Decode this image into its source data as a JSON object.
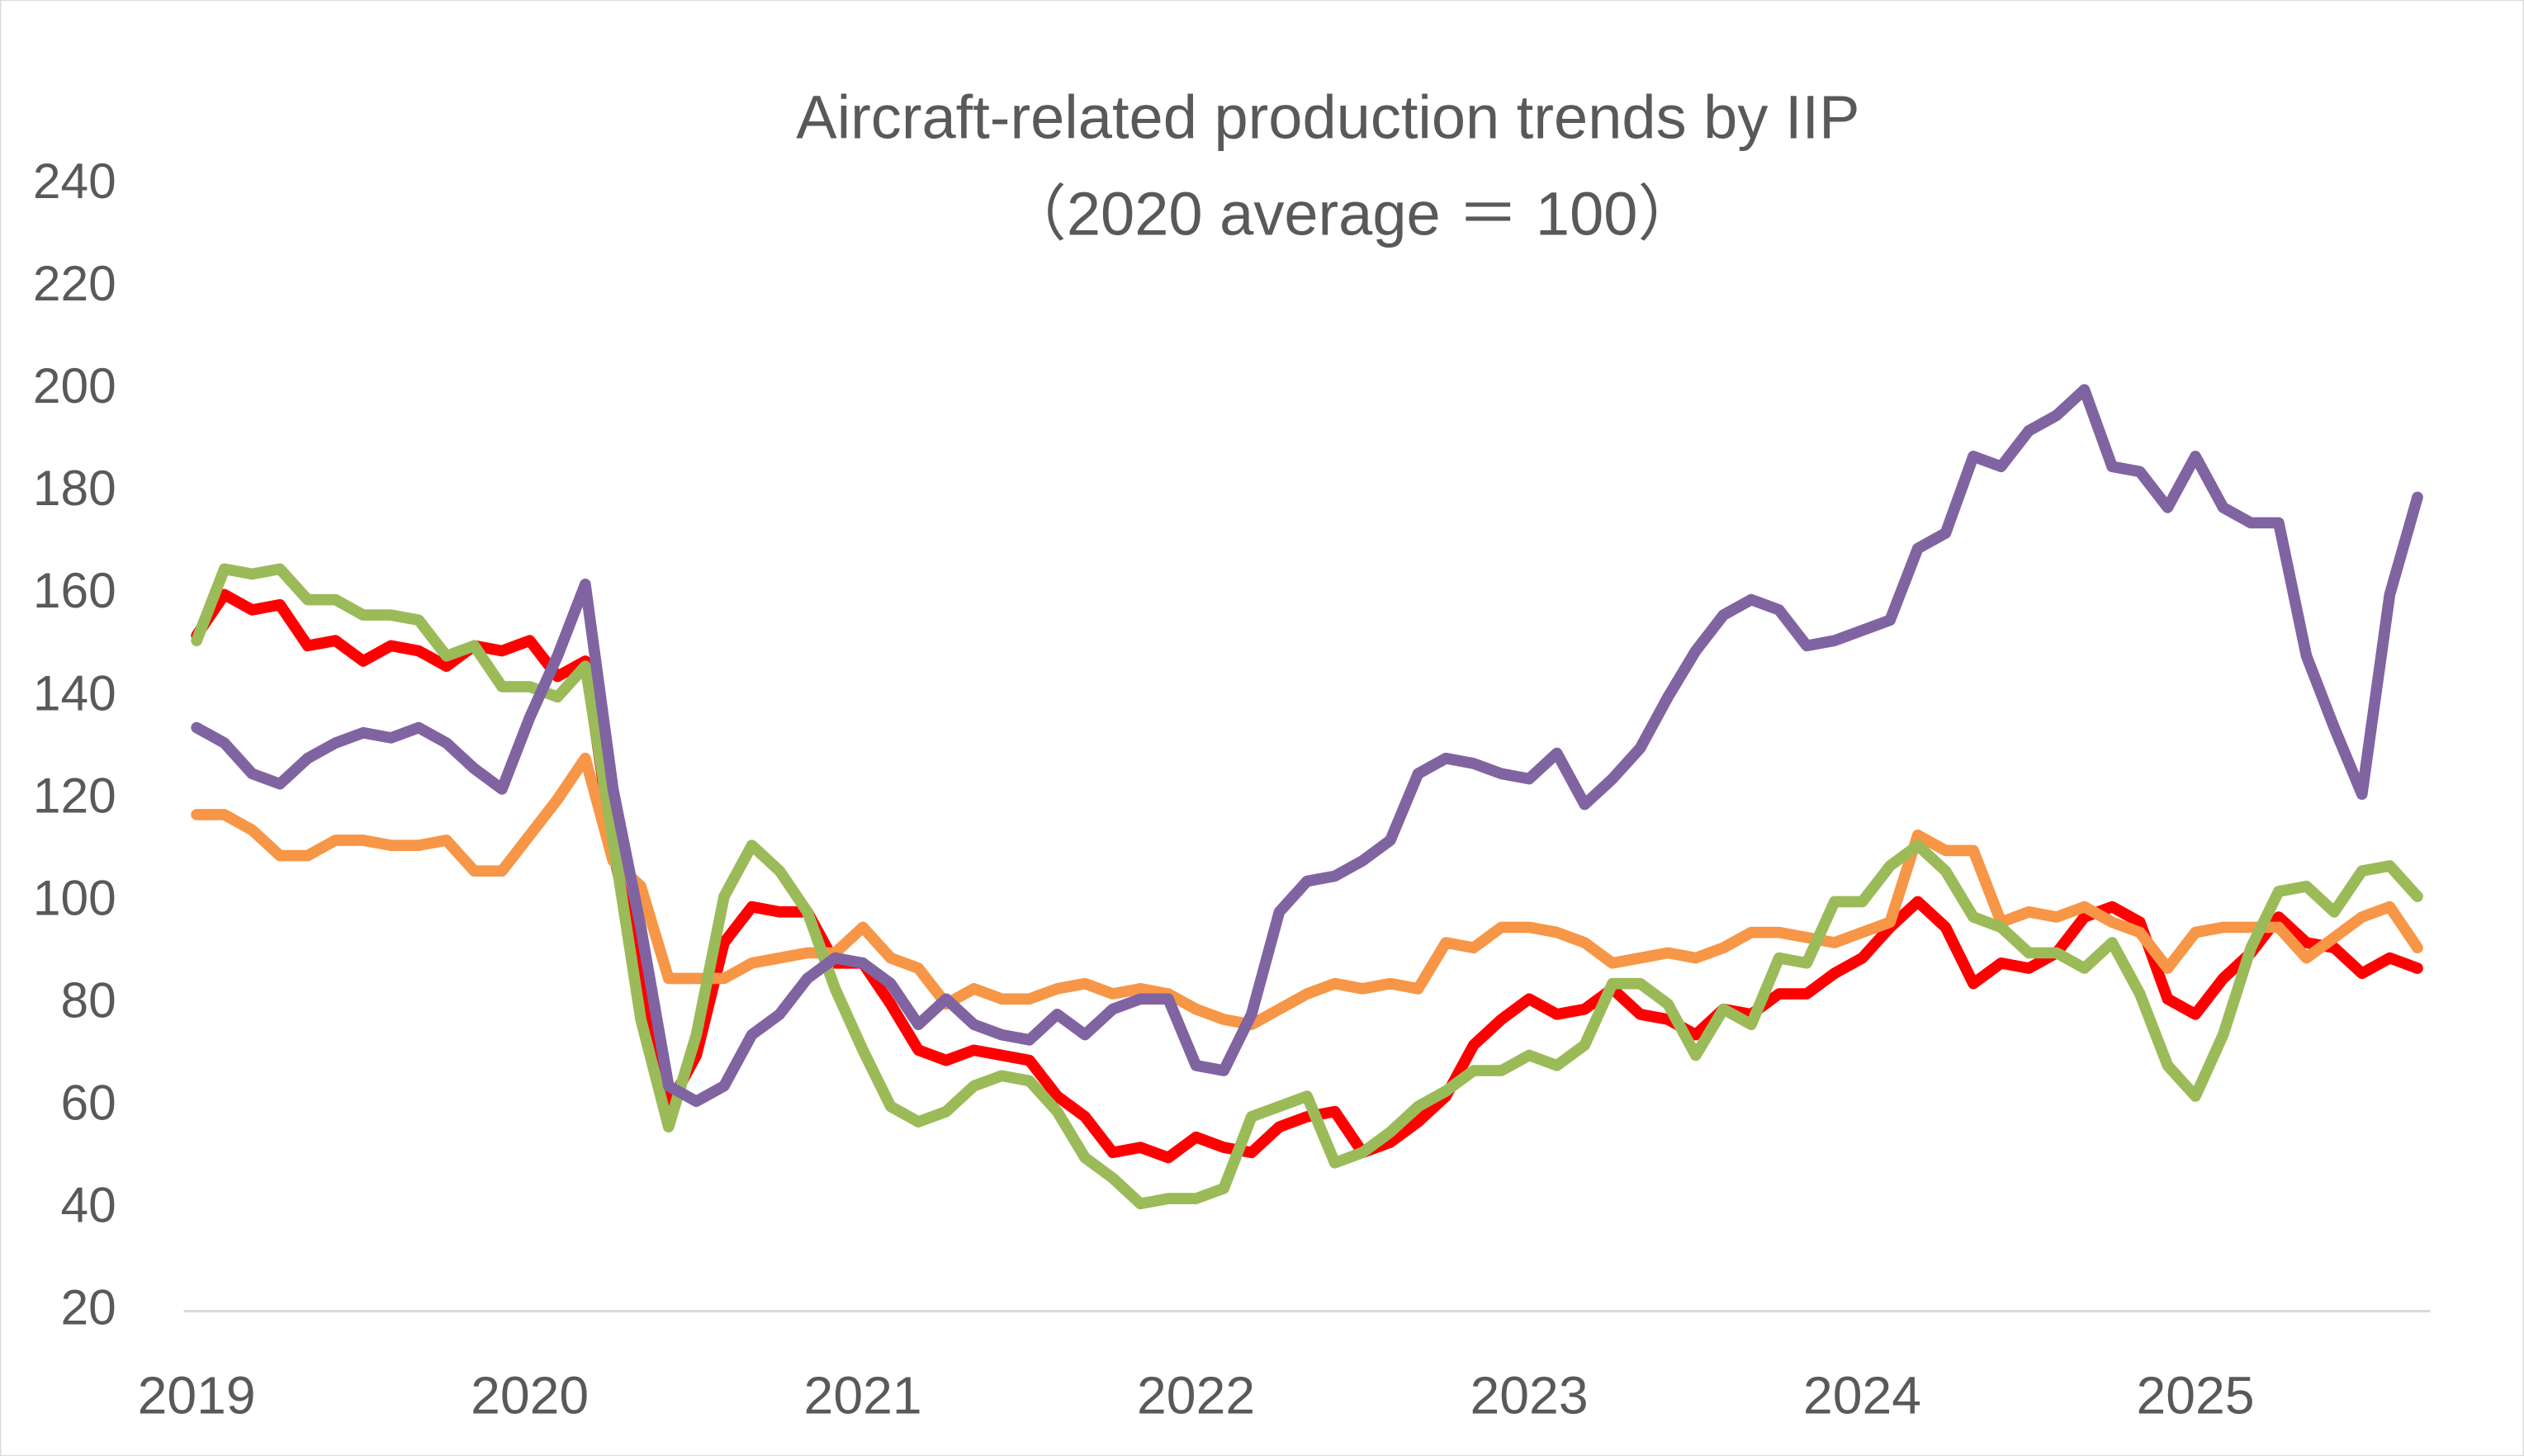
{
  "chart_data": {
    "type": "line",
    "title": "Aircraft-related production trends by IIP",
    "subtitle": "（2020 average ＝ 100）",
    "categories": [
      "2019",
      null,
      null,
      null,
      null,
      null,
      null,
      null,
      null,
      null,
      null,
      null,
      "2020",
      null,
      null,
      null,
      null,
      null,
      null,
      null,
      null,
      null,
      null,
      null,
      "2021",
      null,
      null,
      null,
      null,
      null,
      null,
      null,
      null,
      null,
      null,
      null,
      "2022",
      null,
      null,
      null,
      null,
      null,
      null,
      null,
      null,
      null,
      null,
      null,
      "2023",
      null,
      null,
      null,
      null,
      null,
      null,
      null,
      null,
      null,
      null,
      null,
      "2024",
      null,
      null,
      null,
      null,
      null,
      null,
      null,
      null,
      null,
      null,
      null,
      "2025",
      null,
      null,
      null,
      null,
      null,
      null,
      null,
      null
    ],
    "ylim": [
      20,
      240
    ],
    "yticks": [
      20,
      40,
      60,
      80,
      100,
      120,
      140,
      160,
      180,
      200,
      220,
      240
    ],
    "grid": false,
    "series": [
      {
        "color": "#ff0000",
        "values": [
          152,
          160,
          157,
          158,
          150,
          151,
          147,
          150,
          149,
          146,
          150,
          149,
          151,
          144,
          147,
          110,
          85,
          60,
          70,
          92,
          99,
          98,
          98,
          88,
          88,
          80,
          71,
          69,
          71,
          70,
          69,
          62,
          58,
          51,
          52,
          50,
          54,
          52,
          51,
          56,
          58,
          59,
          51,
          53,
          57,
          62,
          72,
          77,
          81,
          78,
          79,
          83,
          78,
          77,
          74,
          79,
          78,
          82,
          82,
          86,
          89,
          95,
          100,
          95,
          84,
          88,
          87,
          90,
          97,
          99,
          96,
          81,
          78,
          85,
          90,
          97,
          92,
          91,
          86,
          89,
          87
        ]
      },
      {
        "color": "#f79646",
        "values": [
          117,
          117,
          114,
          109,
          109,
          112,
          112,
          111,
          111,
          112,
          106,
          106,
          113,
          120,
          128,
          108,
          103,
          85,
          85,
          85,
          88,
          89,
          90,
          90,
          95,
          89,
          87,
          80,
          83,
          81,
          81,
          83,
          84,
          82,
          83,
          82,
          79,
          77,
          76,
          79,
          82,
          84,
          83,
          84,
          83,
          92,
          91,
          95,
          95,
          94,
          92,
          88,
          89,
          90,
          89,
          91,
          94,
          94,
          93,
          92,
          94,
          96,
          113,
          110,
          110,
          96,
          98,
          97,
          99,
          96,
          94,
          87,
          94,
          95,
          95,
          95,
          89,
          93,
          97,
          99,
          91
        ]
      },
      {
        "color": "#9bbb59",
        "values": [
          151,
          165,
          164,
          165,
          159,
          159,
          156,
          156,
          155,
          148,
          150,
          142,
          142,
          140,
          146,
          112,
          77,
          56,
          74,
          101,
          111,
          106,
          98,
          83,
          71,
          60,
          57,
          59,
          64,
          66,
          65,
          59,
          50,
          46,
          41,
          42,
          42,
          44,
          58,
          60,
          62,
          49,
          51,
          55,
          60,
          63,
          67,
          67,
          70,
          68,
          72,
          84,
          84,
          80,
          70,
          79,
          76,
          89,
          88,
          100,
          100,
          107,
          111,
          106,
          97,
          95,
          90,
          90,
          87,
          92,
          82,
          68,
          62,
          74,
          91,
          102,
          103,
          98,
          106,
          107,
          101
        ]
      },
      {
        "color": "#8064a2",
        "values": [
          134,
          131,
          125,
          123,
          128,
          131,
          133,
          132,
          134,
          131,
          126,
          122,
          136,
          148,
          162,
          122,
          95,
          64,
          61,
          64,
          74,
          78,
          85,
          89,
          88,
          84,
          76,
          81,
          76,
          74,
          73,
          78,
          74,
          79,
          81,
          81,
          68,
          67,
          78,
          98,
          104,
          105,
          108,
          112,
          125,
          128,
          127,
          125,
          124,
          129,
          119,
          124,
          130,
          140,
          149,
          156,
          159,
          157,
          150,
          151,
          153,
          155,
          169,
          172,
          187,
          185,
          192,
          195,
          200,
          185,
          184,
          177,
          187,
          177,
          174,
          174,
          148,
          134,
          121,
          160,
          179
        ]
      }
    ]
  }
}
